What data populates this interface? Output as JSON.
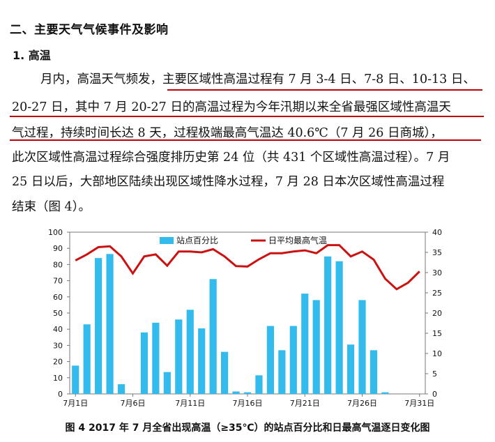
{
  "section_title": "二、主要天气气候事件及影响",
  "subsection_title": "1. 高温",
  "paragraph": {
    "line1": "月内，高温天气频发，主要区域性高温过程有 7 月 3-4 日、7-8 日、10-13 日、",
    "line2": "20-27  日，其中 7 月 20-27 日的高温过程为今年汛期以来全省最强区域性高温天",
    "line3": "气过程，持续时间长达 8 天，过程极端最高气温达 40.6℃（7 月 26 日商城），",
    "line4": "此次区域性高温过程综合强度排历史第 24 位（共 431 个区域性高温过程）。7 月",
    "line5": "25 日以后，大部地区陆续出现区域性降水过程，7 月 28 日本次区域性高温过程",
    "line6": "结束（图 4）。"
  },
  "caption": "图 4  2017 年 7 月全省出现高温（≥35℃）的站点百分比和日最高气温逐日变化图",
  "chart_data": {
    "type": "bar+line",
    "categories": [
      "1",
      "2",
      "3",
      "4",
      "5",
      "6",
      "7",
      "8",
      "9",
      "10",
      "11",
      "12",
      "13",
      "14",
      "15",
      "16",
      "17",
      "18",
      "19",
      "20",
      "21",
      "22",
      "23",
      "24",
      "25",
      "26",
      "27",
      "28",
      "29",
      "30",
      "31"
    ],
    "x_tick_labels": [
      "7月1日",
      "7月6日",
      "7月11日",
      "7月16日",
      "7月21日",
      "7月26日",
      "7月31日"
    ],
    "x_tick_days": [
      1,
      6,
      11,
      16,
      21,
      26,
      31
    ],
    "left_axis": {
      "ylim": [
        0,
        100
      ],
      "ticks": [
        0,
        10,
        20,
        30,
        40,
        50,
        60,
        70,
        80,
        90,
        100
      ]
    },
    "right_axis": {
      "ylim": [
        0,
        40
      ],
      "ticks": [
        0,
        5,
        10,
        15,
        20,
        25,
        30,
        35,
        40
      ]
    },
    "series": [
      {
        "name": "站点百分比",
        "kind": "bar",
        "axis": "left",
        "color": "#33bbee",
        "values": [
          17.5,
          43,
          84,
          86.5,
          6,
          0,
          38,
          44,
          13.5,
          46,
          52,
          40.5,
          71,
          26,
          1.5,
          1,
          11.5,
          42,
          27,
          42,
          62,
          58,
          85,
          82,
          30.5,
          58,
          27,
          1,
          0,
          0,
          0
        ]
      },
      {
        "name": "日平均最高气温",
        "kind": "line",
        "axis": "right",
        "color": "#cc1111",
        "values": [
          33,
          34.5,
          36.3,
          36.5,
          34,
          29.8,
          34,
          34.5,
          31.7,
          35.2,
          35.2,
          35,
          35.8,
          34,
          31.6,
          31.5,
          33.3,
          34.8,
          34.8,
          35.2,
          35.5,
          34.8,
          36.8,
          36.8,
          34,
          35.2,
          33.2,
          28.5,
          25.9,
          27.5,
          30.3
        ]
      }
    ],
    "colors": {
      "bar": "#33bbee",
      "line": "#cc1111",
      "underline": "#c00000"
    }
  }
}
